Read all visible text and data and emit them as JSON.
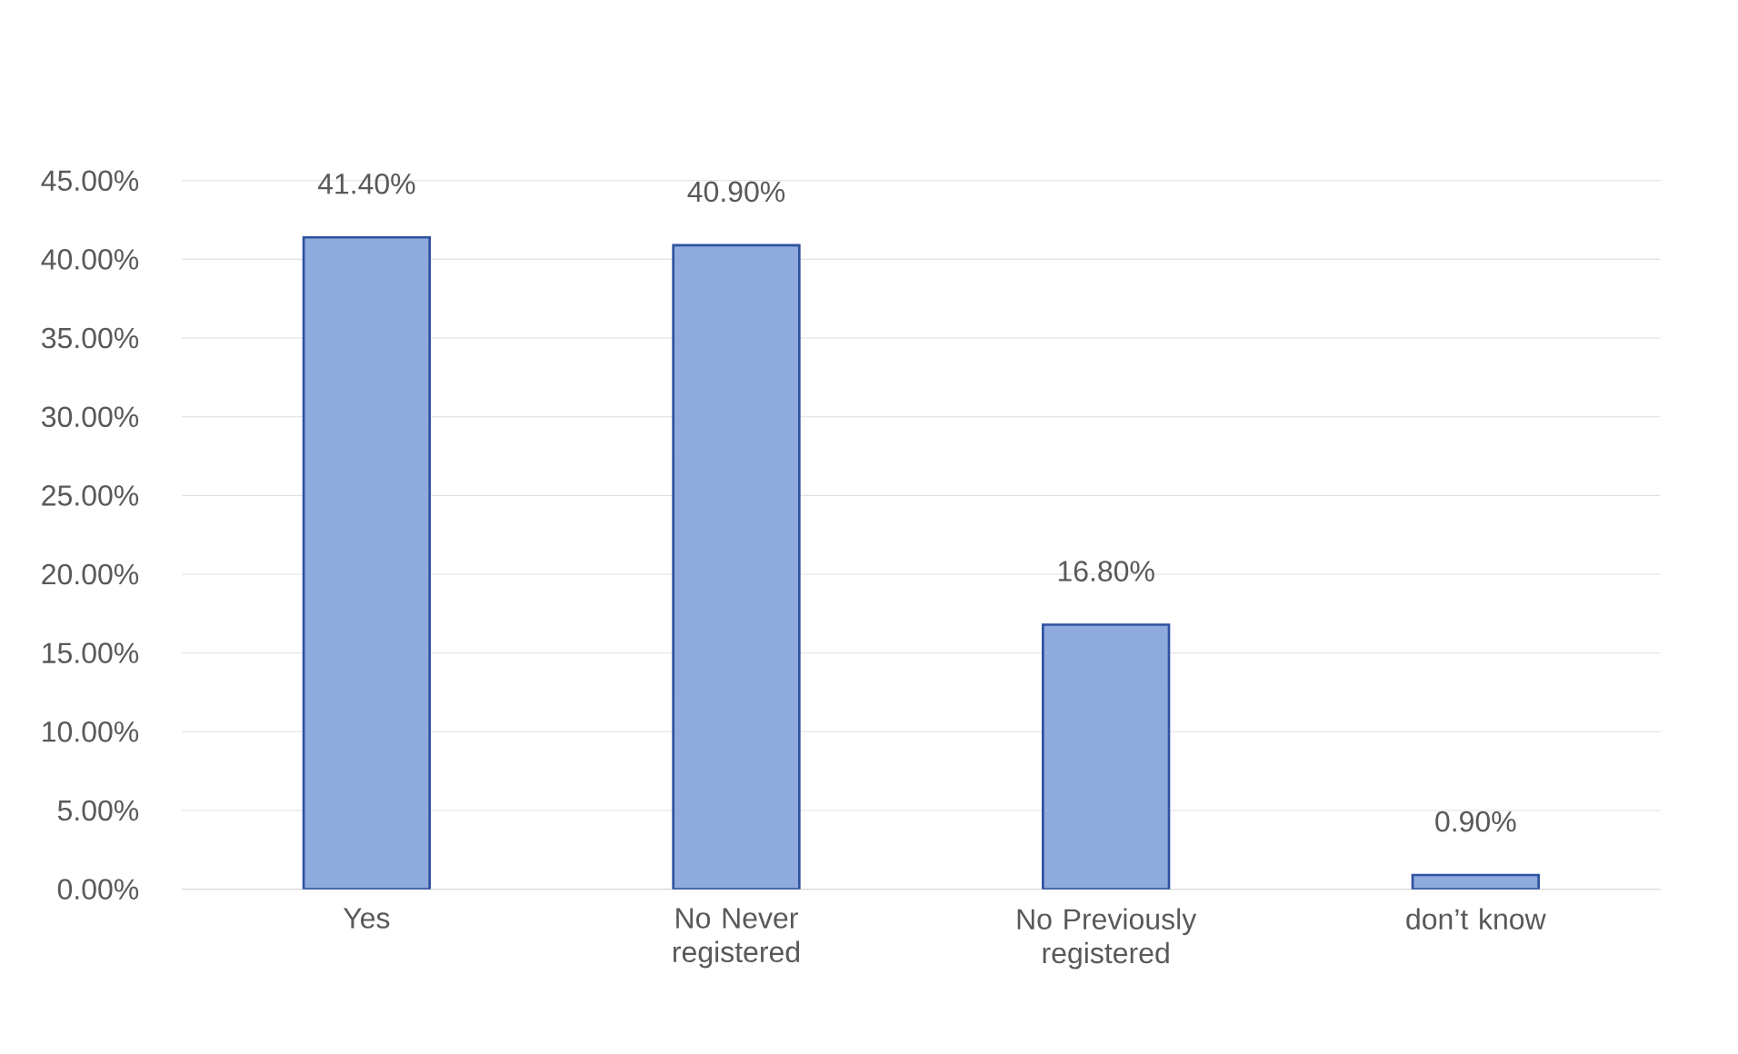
{
  "chart_data": {
    "type": "bar",
    "categories": [
      "Yes",
      "No Never registered",
      "No Previously registered",
      "don’t know"
    ],
    "values": [
      41.4,
      40.9,
      16.8,
      0.9
    ],
    "value_labels": [
      "41.40%",
      "40.90%",
      "16.80%",
      "0.90%"
    ],
    "color": "#8faadc",
    "ylim": [
      0,
      45
    ],
    "yticks": [
      {
        "value": 0,
        "label": "0.00%"
      },
      {
        "value": 5,
        "label": "5.00%"
      },
      {
        "value": 10,
        "label": "10.00%"
      },
      {
        "value": 15,
        "label": "15.00%"
      },
      {
        "value": 20,
        "label": "20.00%"
      },
      {
        "value": 25,
        "label": "25.00%"
      },
      {
        "value": 30,
        "label": "30.00%"
      },
      {
        "value": 35,
        "label": "35.00%"
      },
      {
        "value": 40,
        "label": "40.00%"
      },
      {
        "value": 45,
        "label": "45.00%"
      }
    ],
    "grid": "y"
  }
}
